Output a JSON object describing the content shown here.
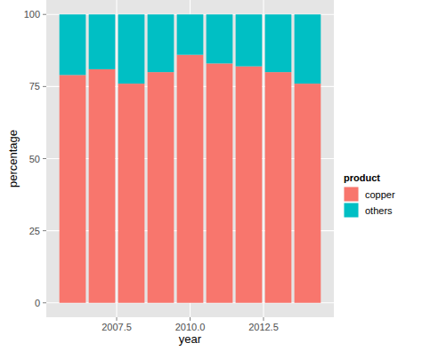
{
  "chart_data": {
    "type": "bar",
    "stacked": true,
    "x_label": "year",
    "y_label": "percentage",
    "legend_title": "product",
    "legend": "right",
    "grid": true,
    "x": [
      2006,
      2007,
      2008,
      2009,
      2010,
      2011,
      2012,
      2013,
      2014
    ],
    "series": [
      {
        "name": "copper",
        "color": "#F8766D",
        "values": [
          79,
          81,
          76,
          80,
          86,
          83,
          82,
          80,
          76
        ]
      },
      {
        "name": "others",
        "color": "#00BFC4",
        "values": [
          21,
          19,
          24,
          20,
          14,
          17,
          18,
          20,
          24
        ]
      }
    ],
    "xlim": [
      2005.105,
      2014.895
    ],
    "xticks": [
      2007.5,
      {
        "value": 2010,
        "label": "2010.0"
      },
      2012.5
    ],
    "ylim": [
      -5,
      105
    ],
    "yticks": [
      0,
      25,
      50,
      75,
      100
    ]
  }
}
